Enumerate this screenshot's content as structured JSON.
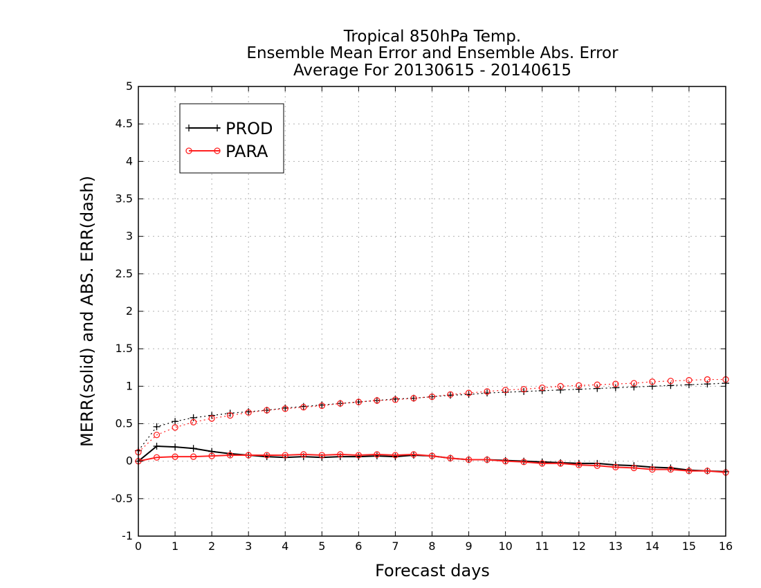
{
  "chart_data": {
    "type": "line",
    "title": [
      "Tropical 850hPa Temp.",
      "Ensemble Mean Error and Ensemble Abs. Error",
      "Average For 20130615 - 20140615"
    ],
    "xlabel": "Forecast days",
    "ylabel": "MERR(solid) and ABS. ERR(dash)",
    "xlim": [
      0,
      16
    ],
    "ylim": [
      -1,
      5
    ],
    "x_ticks": [
      0,
      1,
      2,
      3,
      4,
      5,
      6,
      7,
      8,
      9,
      10,
      11,
      12,
      13,
      14,
      15,
      16
    ],
    "y_ticks": [
      -1,
      -0.5,
      0,
      0.5,
      1,
      1.5,
      2,
      2.5,
      3,
      3.5,
      4,
      4.5,
      5
    ],
    "grid": true,
    "legend_position": "top-left",
    "x": [
      0,
      0.5,
      1,
      1.5,
      2,
      2.5,
      3,
      3.5,
      4,
      4.5,
      5,
      5.5,
      6,
      6.5,
      7,
      7.5,
      8,
      8.5,
      9,
      9.5,
      10,
      10.5,
      11,
      11.5,
      12,
      12.5,
      13,
      13.5,
      14,
      14.5,
      15,
      15.5,
      16
    ],
    "series": [
      {
        "name": "PROD",
        "metric": "mean error",
        "line": "solid",
        "marker": "plus",
        "color": "#000000",
        "values": [
          0.0,
          0.2,
          0.19,
          0.17,
          0.13,
          0.1,
          0.08,
          0.06,
          0.05,
          0.06,
          0.05,
          0.06,
          0.06,
          0.07,
          0.06,
          0.08,
          0.07,
          0.04,
          0.02,
          0.02,
          0.01,
          0.0,
          -0.01,
          -0.02,
          -0.03,
          -0.03,
          -0.05,
          -0.06,
          -0.08,
          -0.09,
          -0.12,
          -0.13,
          -0.14
        ]
      },
      {
        "name": "PARA",
        "metric": "mean error",
        "line": "solid",
        "marker": "circle",
        "color": "#ff2020",
        "values": [
          0.0,
          0.05,
          0.06,
          0.06,
          0.07,
          0.08,
          0.08,
          0.08,
          0.08,
          0.09,
          0.08,
          0.09,
          0.08,
          0.09,
          0.08,
          0.09,
          0.07,
          0.04,
          0.02,
          0.02,
          0.0,
          -0.01,
          -0.03,
          -0.03,
          -0.05,
          -0.06,
          -0.08,
          -0.09,
          -0.11,
          -0.11,
          -0.13,
          -0.13,
          -0.15
        ]
      },
      {
        "name": "PROD",
        "metric": "abs error",
        "line": "dotted",
        "marker": "plus",
        "color": "#000000",
        "values": [
          0.14,
          0.46,
          0.53,
          0.58,
          0.61,
          0.64,
          0.66,
          0.68,
          0.71,
          0.73,
          0.75,
          0.77,
          0.79,
          0.81,
          0.83,
          0.84,
          0.86,
          0.88,
          0.89,
          0.91,
          0.92,
          0.93,
          0.94,
          0.95,
          0.96,
          0.97,
          0.98,
          0.99,
          1.0,
          1.01,
          1.02,
          1.03,
          1.04
        ]
      },
      {
        "name": "PARA",
        "metric": "abs error",
        "line": "dotted",
        "marker": "circle",
        "color": "#ff2020",
        "values": [
          0.12,
          0.35,
          0.45,
          0.52,
          0.57,
          0.61,
          0.65,
          0.68,
          0.7,
          0.72,
          0.74,
          0.77,
          0.79,
          0.81,
          0.82,
          0.84,
          0.86,
          0.89,
          0.91,
          0.93,
          0.95,
          0.96,
          0.98,
          1.0,
          1.01,
          1.02,
          1.03,
          1.04,
          1.06,
          1.07,
          1.08,
          1.09,
          1.09
        ]
      }
    ],
    "legend": [
      {
        "label": "PROD",
        "color": "#000000",
        "marker": "plus"
      },
      {
        "label": "PARA",
        "color": "#ff2020",
        "marker": "circle"
      }
    ]
  }
}
